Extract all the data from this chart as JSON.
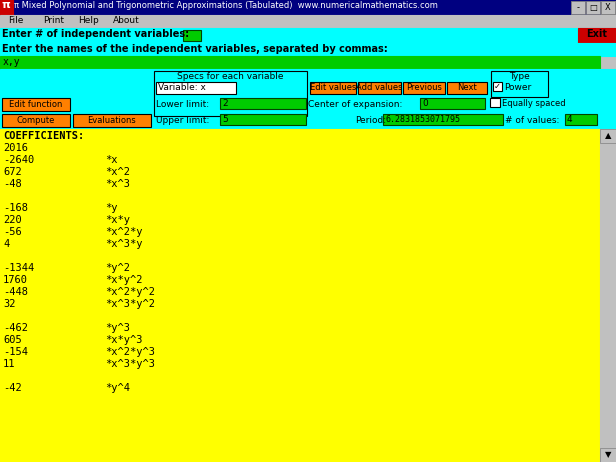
{
  "title": "π Mixed Polynomial and Trigonometric Approximations (Tabulated)  www.numericalmathematics.com",
  "menu_items": [
    "File",
    "Print",
    "Help",
    "About"
  ],
  "bg_color": "#c0c0c0",
  "cyan_color": "#00ffff",
  "yellow_color": "#ffff00",
  "green_color": "#00cc00",
  "orange_color": "#ff8000",
  "red_color": "#cc0000",
  "title_bar_color": "#000080",
  "label1": "Enter # of independent variables:",
  "label2": "Enter the names of the independent variables, separated by commas:",
  "var_name": "x,y",
  "specs_label": "Specs for each variable",
  "variable_label": "Variable: x",
  "lower_limit_label": "Lower limit:",
  "lower_limit_val": "2",
  "upper_limit_label": "Upper limit:",
  "upper_limit_val": "5",
  "center_label": "Center of expansion:",
  "center_val": "0",
  "period_label": "Period:",
  "period_val": "6.2831853071795",
  "nvalues_label": "# of values:",
  "nvalues_val": "4",
  "buttons": [
    "Edit values",
    "Add values",
    "Previous",
    "Next"
  ],
  "type_label": "Type",
  "power_label": "Power",
  "equally_spaced": "Equally spaced",
  "edit_function": "Edit function",
  "compute": "Compute",
  "evaluations": "Evaluations",
  "coefficients_header": "COEFFICIENTS:",
  "coeff_lines": [
    [
      "2016",
      ""
    ],
    [
      "-2640",
      "*x"
    ],
    [
      "672",
      "*x^2"
    ],
    [
      "-48",
      "*x^3"
    ],
    [
      "",
      ""
    ],
    [
      "-168",
      "*y"
    ],
    [
      "220",
      "*x*y"
    ],
    [
      "-56",
      "*x^2*y"
    ],
    [
      "4",
      "*x^3*y"
    ],
    [
      "",
      ""
    ],
    [
      "-1344",
      "*y^2"
    ],
    [
      "1760",
      "*x*y^2"
    ],
    [
      "-448",
      "*x^2*y^2"
    ],
    [
      "32",
      "*x^3*y^2"
    ],
    [
      "",
      ""
    ],
    [
      "-462",
      "*y^3"
    ],
    [
      "605",
      "*x*y^3"
    ],
    [
      "-154",
      "*x^2*y^3"
    ],
    [
      "11",
      "*x^3*y^3"
    ],
    [
      "",
      ""
    ],
    [
      "-42",
      "*y^4"
    ]
  ],
  "window_buttons": [
    "-",
    "□",
    "X"
  ]
}
